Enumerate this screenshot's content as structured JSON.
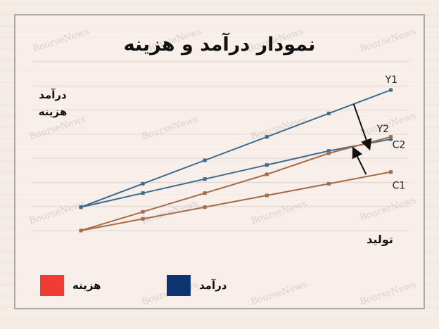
{
  "title": "نمودار درآمد و هزینه",
  "watermark": "BourseNews",
  "legend": [
    {
      "label": "هزینه",
      "color": "#f03c35"
    },
    {
      "label": "درآمد",
      "color": "#0e3470"
    }
  ],
  "chart_data": {
    "type": "line",
    "title": "نمودار درآمد و هزینه",
    "xlabel": "تولید",
    "ylabel": "درآمد هزینه",
    "ylabel_lines": [
      "درآمد",
      "هزینه"
    ],
    "x": [
      0,
      1,
      2,
      3,
      4,
      5
    ],
    "xlim": [
      0,
      5.3
    ],
    "ylim": [
      0,
      6
    ],
    "grid": true,
    "legend_position": "bottom",
    "series": [
      {
        "name": "Y1",
        "color": "#3e6c8c",
        "values": [
          1,
          2,
          3,
          4,
          5,
          6
        ]
      },
      {
        "name": "Y2",
        "color": "#3e6c8c",
        "values": [
          1,
          1.6,
          2.2,
          2.8,
          3.4,
          3.9
        ]
      },
      {
        "name": "C2",
        "color": "#a56c47",
        "values": [
          0,
          0.8,
          1.6,
          2.4,
          3.3,
          4.0
        ]
      },
      {
        "name": "C1",
        "color": "#a56c47",
        "values": [
          0,
          0.5,
          1.0,
          1.5,
          2.0,
          2.5
        ]
      }
    ]
  }
}
